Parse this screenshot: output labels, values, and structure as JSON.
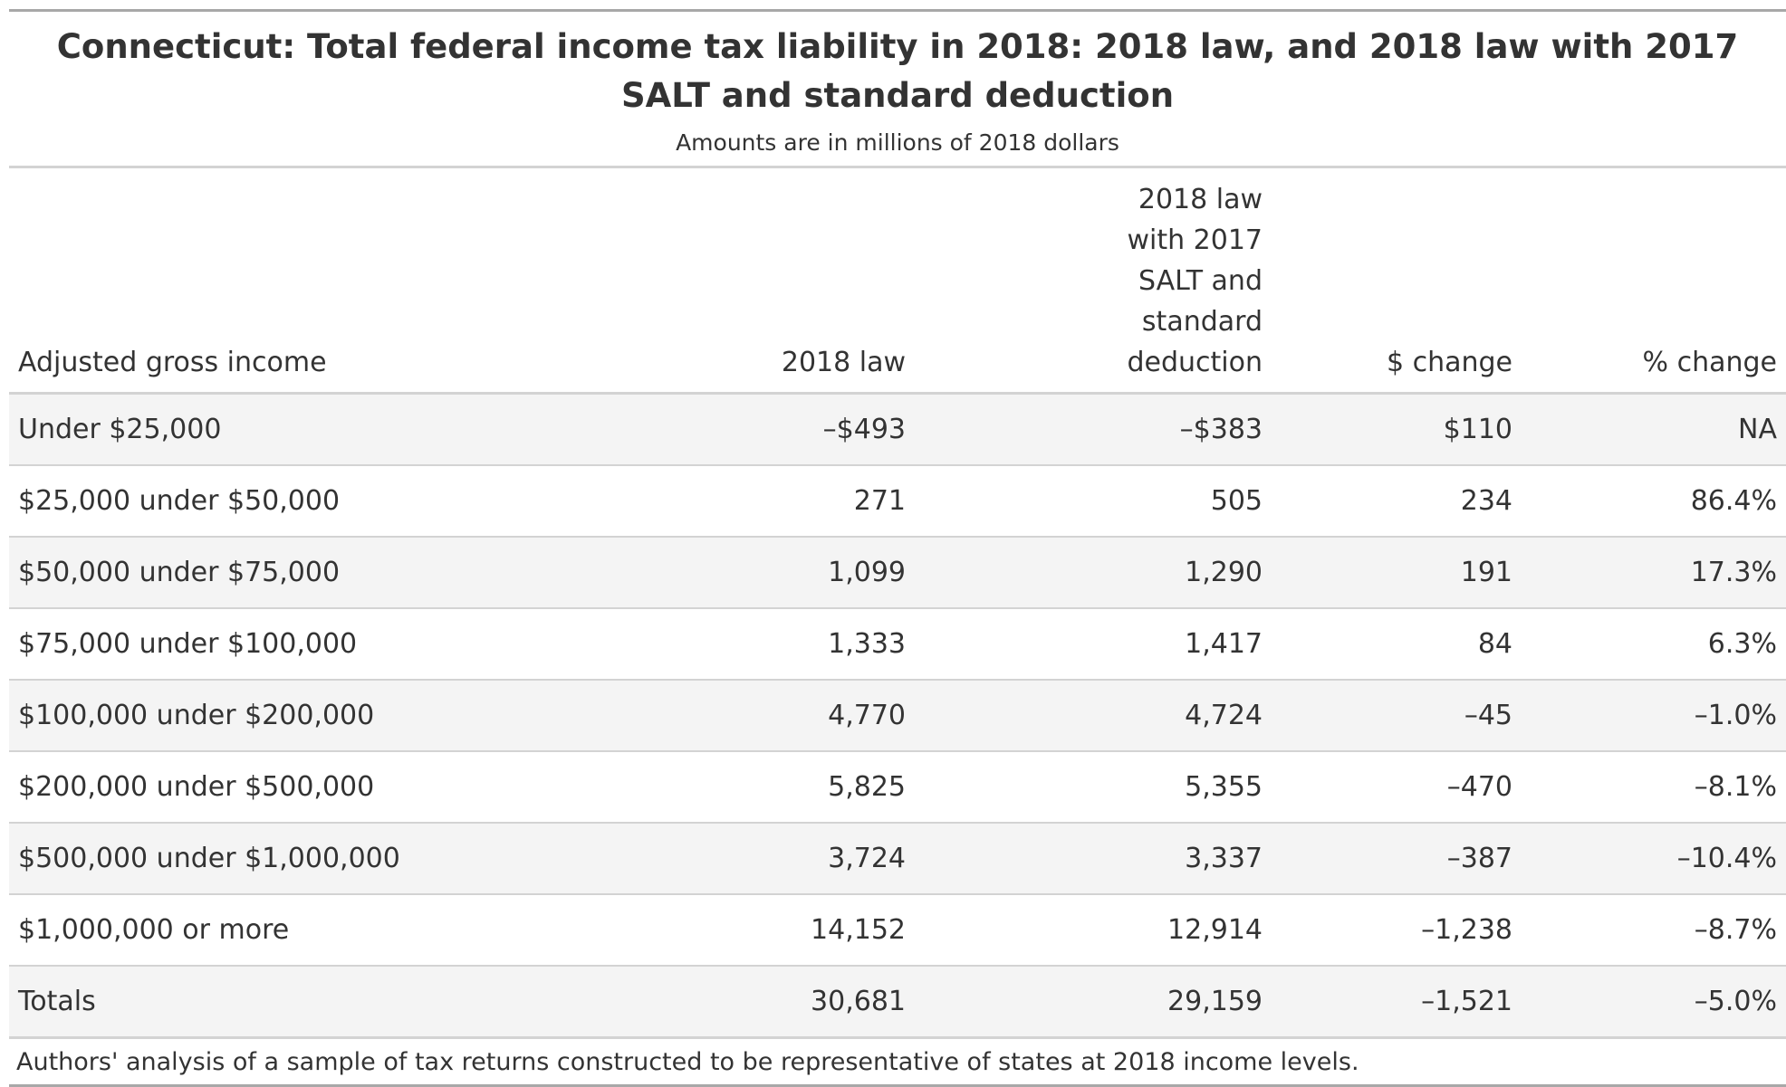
{
  "title": "Connecticut: Total federal income tax liability in 2018: 2018 law, and 2018 law with 2017 SALT and standard deduction",
  "subtitle": "Amounts are in millions of 2018 dollars",
  "columns": {
    "agi": "Adjusted gross income",
    "law2018": "2018 law",
    "law2018_salt": "2018 law with 2017 SALT and standard deduction",
    "dollar_change": "$ change",
    "pct_change": "% change"
  },
  "rows": [
    {
      "agi": "Under $25,000",
      "law2018": "–$493",
      "law2018_salt": "–$383",
      "dollar_change": "$110",
      "pct_change": "NA"
    },
    {
      "agi": "$25,000 under $50,000",
      "law2018": "271",
      "law2018_salt": "505",
      "dollar_change": "234",
      "pct_change": "86.4%"
    },
    {
      "agi": "$50,000 under $75,000",
      "law2018": "1,099",
      "law2018_salt": "1,290",
      "dollar_change": "191",
      "pct_change": "17.3%"
    },
    {
      "agi": "$75,000 under $100,000",
      "law2018": "1,333",
      "law2018_salt": "1,417",
      "dollar_change": "84",
      "pct_change": "6.3%"
    },
    {
      "agi": "$100,000 under $200,000",
      "law2018": "4,770",
      "law2018_salt": "4,724",
      "dollar_change": "–45",
      "pct_change": "–1.0%"
    },
    {
      "agi": "$200,000 under $500,000",
      "law2018": "5,825",
      "law2018_salt": "5,355",
      "dollar_change": "–470",
      "pct_change": "–8.1%"
    },
    {
      "agi": "$500,000 under $1,000,000",
      "law2018": "3,724",
      "law2018_salt": "3,337",
      "dollar_change": "–387",
      "pct_change": "–10.4%"
    },
    {
      "agi": "$1,000,000 or more",
      "law2018": "14,152",
      "law2018_salt": "12,914",
      "dollar_change": "–1,238",
      "pct_change": "–8.7%"
    },
    {
      "agi": "Totals",
      "law2018": "30,681",
      "law2018_salt": "29,159",
      "dollar_change": "–1,521",
      "pct_change": "–5.0%"
    }
  ],
  "footnote": "Authors' analysis of a sample of tax returns constructed to be representative of states at 2018 income levels."
}
